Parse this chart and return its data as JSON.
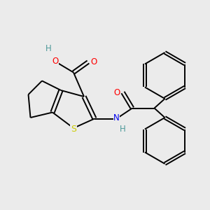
{
  "background_color": "#ebebeb",
  "atom_colors": {
    "S": "#cccc00",
    "O": "#ff0000",
    "N": "#0000ee",
    "H_teal": "#4d9999",
    "C": "#000000"
  },
  "bond_color": "#000000",
  "bond_width": 1.4,
  "figsize": [
    3.0,
    3.0
  ],
  "dpi": 100
}
